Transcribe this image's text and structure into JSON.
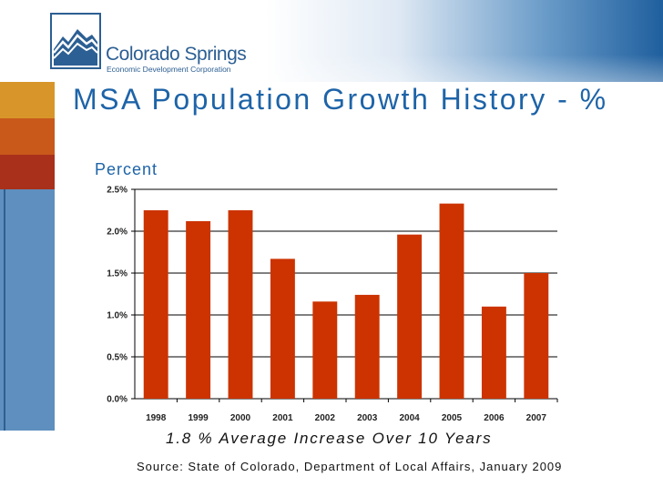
{
  "logo": {
    "name": "Colorado Springs",
    "subtitle": "Economic Development Corporation"
  },
  "slide": {
    "title": "MSA Population Growth History - %",
    "note": "1.8 % Average Increase Over 10 Years",
    "source": "Source:  State of Colorado, Department of Local Affairs, January 2009"
  },
  "colors": {
    "bar": "#cc3300",
    "title": "#1e64a8"
  },
  "chart_data": {
    "type": "bar",
    "title": "",
    "ylabel": "Percent",
    "xlabel": "",
    "categories": [
      "1998",
      "1999",
      "2000",
      "2001",
      "2002",
      "2003",
      "2004",
      "2005",
      "2006",
      "2007"
    ],
    "values": [
      2.25,
      2.12,
      2.25,
      1.67,
      1.16,
      1.24,
      1.96,
      2.33,
      1.1,
      1.5
    ],
    "ylim": [
      0,
      2.5
    ],
    "yticks": [
      "0.0%",
      "0.5%",
      "1.0%",
      "1.5%",
      "2.0%",
      "2.5%"
    ],
    "grid": true,
    "legend": "none"
  }
}
